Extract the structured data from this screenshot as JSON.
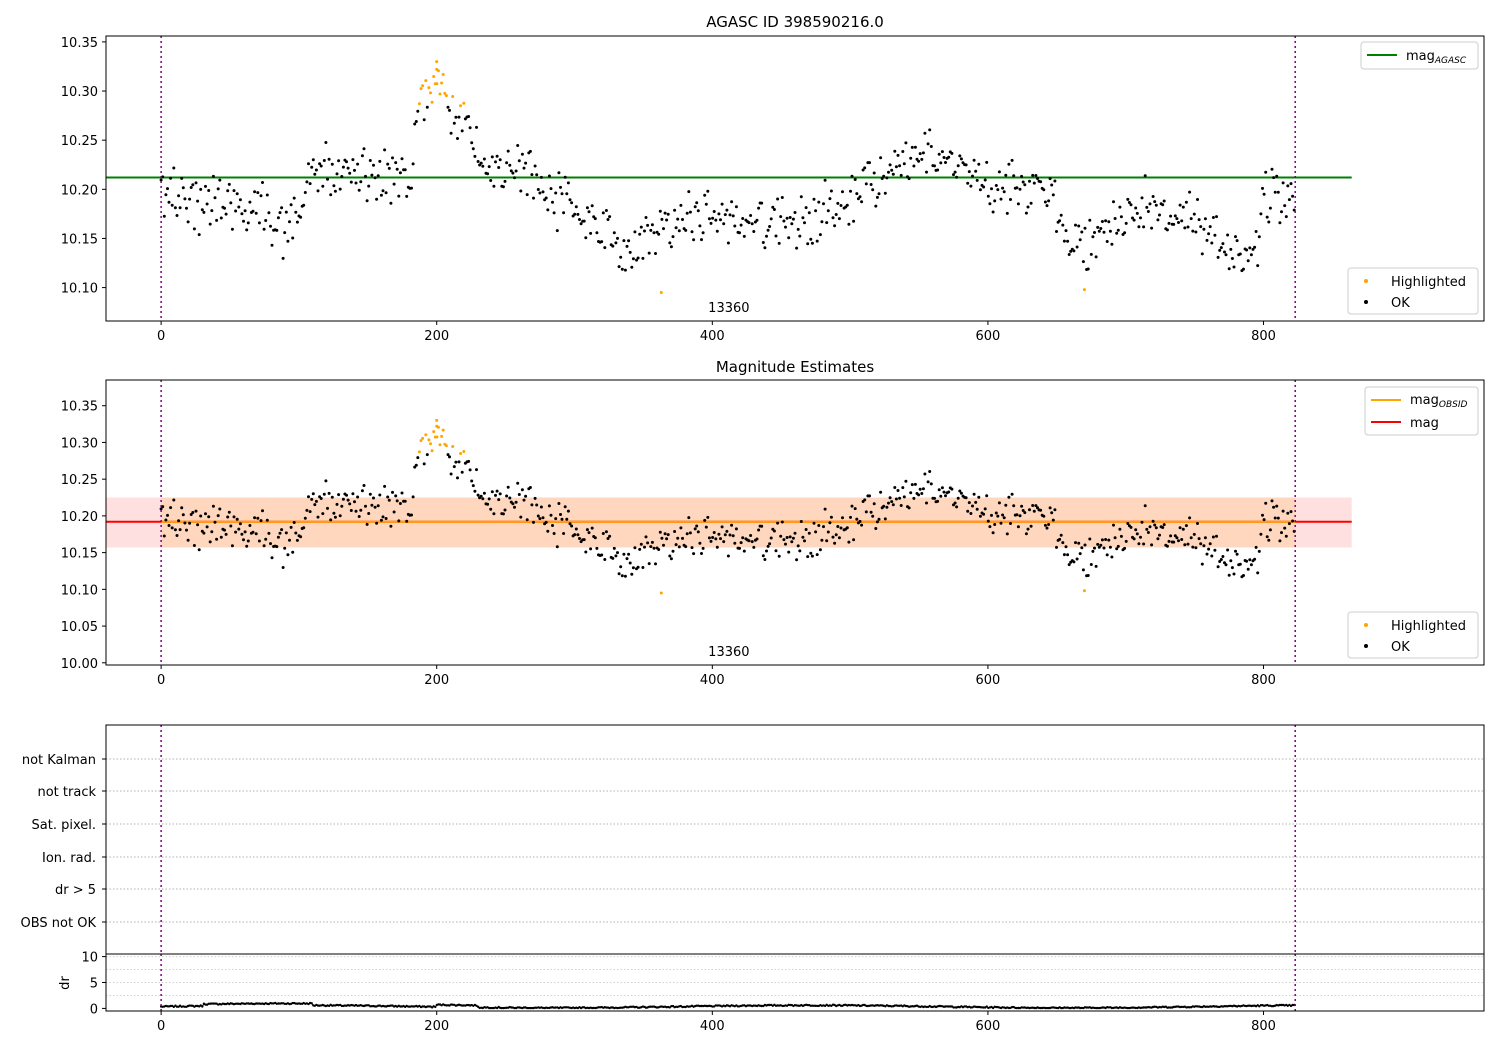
{
  "figure": {
    "title": "AGASC ID 398590216.0"
  },
  "chart_data": [
    {
      "type": "scatter",
      "title": "AGASC ID 398590216.0",
      "xlim": [
        -40,
        960
      ],
      "ylim": [
        10.066,
        10.356
      ],
      "xticks": [
        0,
        200,
        400,
        600,
        800
      ],
      "yticks": [
        10.1,
        10.15,
        10.2,
        10.25,
        10.3,
        10.35
      ],
      "vlines": [
        0,
        823
      ],
      "hline": {
        "y": 10.212,
        "x_range": [
          -40,
          864
        ],
        "color": "#008000",
        "label": "mag",
        "label_sub": "AGASC"
      },
      "annotation": {
        "text": "13360",
        "x": 412
      },
      "legend_points": [
        {
          "label": "Highlighted",
          "color": "#ffa500"
        },
        {
          "label": "OK",
          "color": "#000000"
        }
      ]
    },
    {
      "type": "scatter",
      "title": "Magnitude Estimates",
      "xlim": [
        -40,
        960
      ],
      "ylim": [
        9.997,
        10.385
      ],
      "xticks": [
        0,
        200,
        400,
        600,
        800
      ],
      "yticks": [
        10.0,
        10.05,
        10.1,
        10.15,
        10.2,
        10.25,
        10.3,
        10.35
      ],
      "vlines": [
        0,
        823
      ],
      "band": {
        "y_low": 10.157,
        "y_high": 10.225,
        "x_range": [
          -40,
          864
        ]
      },
      "inner_band": {
        "y_low": 10.157,
        "y_high": 10.225,
        "x_range": [
          0,
          823
        ]
      },
      "hline": {
        "y": 10.192,
        "x_range": [
          -40,
          864
        ],
        "color": "#ff0000",
        "label": "mag"
      },
      "obsid_line": {
        "label": "mag",
        "label_sub": "OBSID",
        "color": "#ffa500"
      },
      "annotation": {
        "text": "13360",
        "x": 412
      },
      "legend_points": [
        {
          "label": "Highlighted",
          "color": "#ffa500"
        },
        {
          "label": "OK",
          "color": "#000000"
        }
      ]
    },
    {
      "type": "table",
      "rows": [
        "not Kalman",
        "not track",
        "Sat. pixel.",
        "Ion. rad.",
        "dr > 5",
        "OBS not OK"
      ],
      "xlim": [
        -40,
        960
      ],
      "vlines": [
        0,
        823
      ]
    },
    {
      "type": "line",
      "ylabel": "dr",
      "xlim": [
        -40,
        960
      ],
      "ylim": [
        -0.5,
        10.5
      ],
      "xticks": [
        0,
        200,
        400,
        600,
        800
      ],
      "yticks": [
        0,
        5,
        10
      ],
      "vlines": [
        0,
        823
      ]
    }
  ]
}
